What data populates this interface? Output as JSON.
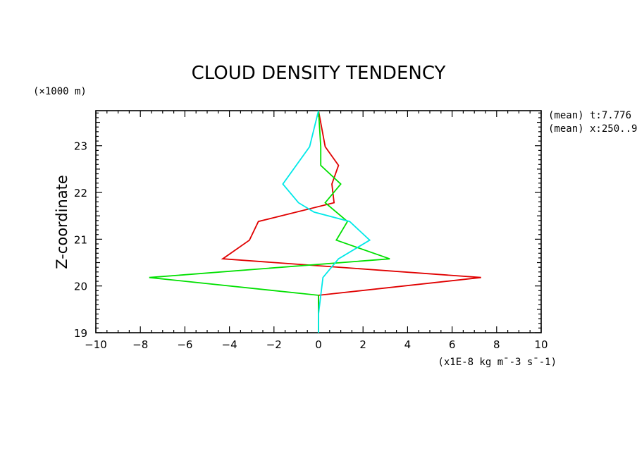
{
  "chart_data": {
    "type": "line",
    "title": "CLOUD DENSITY TENDENCY",
    "ylabel": "Z-coordinate",
    "y_unit": "(×1000 m)",
    "x_unit": "(x1E-8 kg m¯-3 s¯-1)",
    "annotations": [
      "(mean) t:7.776",
      "(mean) x:250..9"
    ],
    "xlim": [
      -10,
      10
    ],
    "ylim": [
      19,
      23.75
    ],
    "x_ticks": [
      -10,
      -8,
      -6,
      -4,
      -2,
      0,
      2,
      4,
      6,
      8,
      10
    ],
    "y_ticks": [
      19,
      20,
      21,
      22,
      23
    ],
    "x_tick_labels": [
      "-10",
      "-8",
      "-6",
      "-4",
      "-2",
      "0",
      "2",
      "4",
      "6",
      "8",
      "10"
    ],
    "y_tick_labels": [
      "19",
      "20",
      "21",
      "22",
      "23"
    ],
    "grid": false,
    "series": [
      {
        "color": "#e00000",
        "points": [
          [
            0,
            19.4
          ],
          [
            0,
            19.8
          ],
          [
            7.3,
            20.18
          ],
          [
            -4.3,
            20.58
          ],
          [
            -3.1,
            20.98
          ],
          [
            -2.7,
            21.38
          ],
          [
            0.7,
            21.78
          ],
          [
            0.6,
            22.18
          ],
          [
            0.9,
            22.58
          ],
          [
            0.3,
            22.98
          ],
          [
            0,
            23.75
          ]
        ]
      },
      {
        "color": "#00e000",
        "points": [
          [
            0,
            19.0
          ],
          [
            0,
            19.8
          ],
          [
            -7.6,
            20.18
          ],
          [
            3.2,
            20.58
          ],
          [
            0.8,
            20.98
          ],
          [
            1.3,
            21.38
          ],
          [
            0.3,
            21.78
          ],
          [
            1.0,
            22.18
          ],
          [
            0.1,
            22.58
          ],
          [
            0.1,
            22.98
          ],
          [
            0,
            23.75
          ]
        ]
      },
      {
        "color": "#00e8e8",
        "points": [
          [
            0,
            19.0
          ],
          [
            0,
            19.4
          ],
          [
            0.2,
            20.18
          ],
          [
            0.9,
            20.58
          ],
          [
            2.3,
            20.98
          ],
          [
            1.4,
            21.38
          ],
          [
            -0.2,
            21.58
          ],
          [
            -0.9,
            21.78
          ],
          [
            -1.6,
            22.18
          ],
          [
            -0.4,
            22.98
          ],
          [
            0,
            23.75
          ]
        ]
      }
    ]
  }
}
